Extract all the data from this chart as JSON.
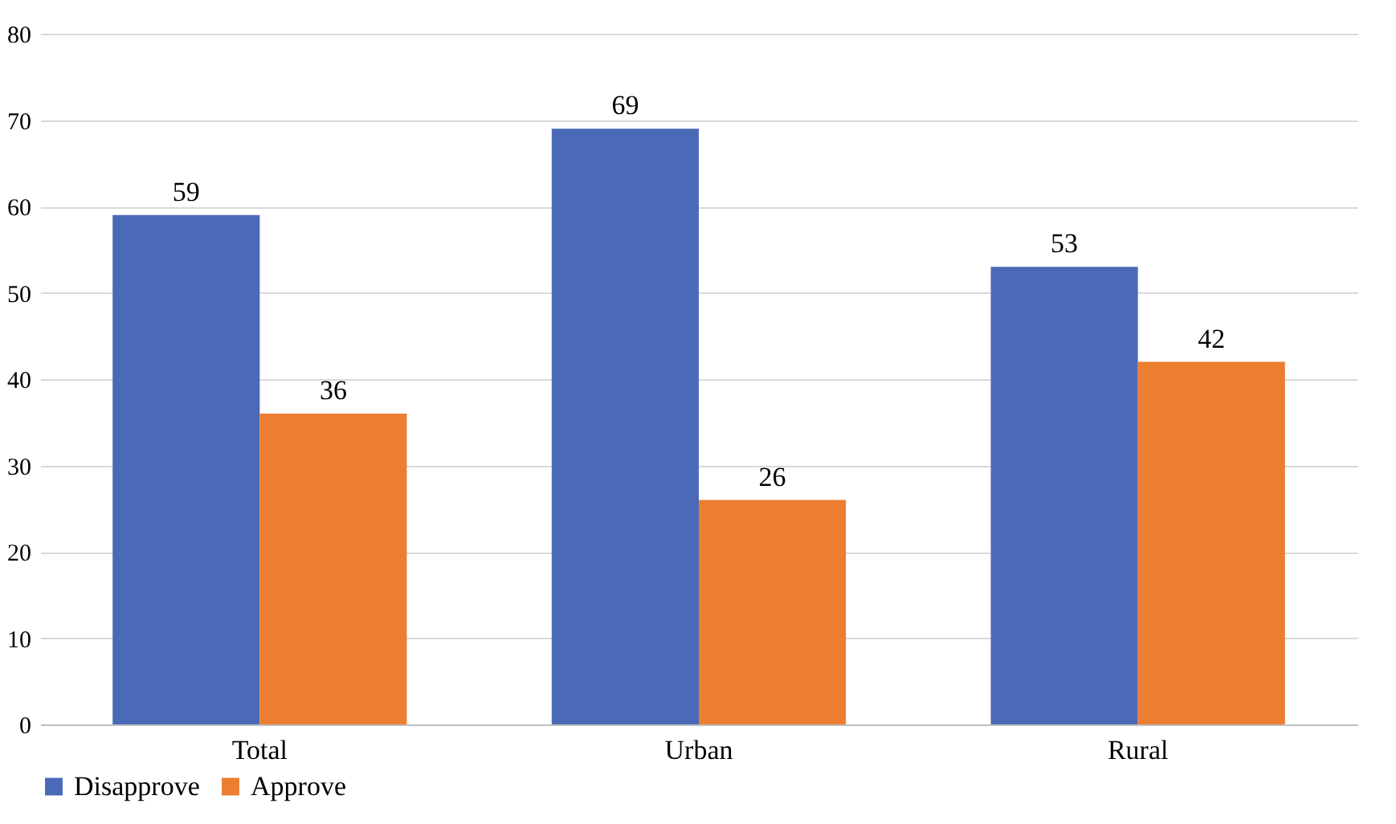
{
  "chart_data": {
    "type": "bar",
    "categories": [
      "Total",
      "Urban",
      "Rural"
    ],
    "series": [
      {
        "name": "Disapprove",
        "color": "#4a6ab8",
        "values": [
          59,
          69,
          53
        ]
      },
      {
        "name": "Approve",
        "color": "#ed7d31",
        "values": [
          36,
          26,
          42
        ]
      }
    ],
    "ylim": [
      0,
      80
    ],
    "yticks": [
      0,
      10,
      20,
      30,
      40,
      50,
      60,
      70,
      80
    ],
    "grid": "y",
    "legend": "bottom",
    "data_labels": true
  }
}
